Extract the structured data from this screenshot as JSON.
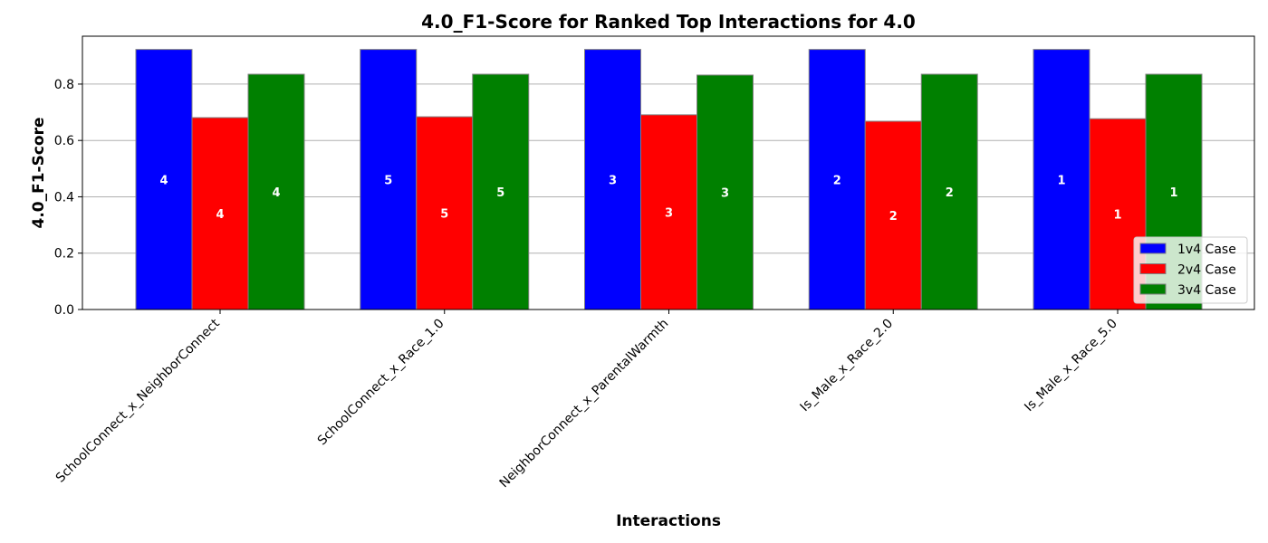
{
  "chart_data": {
    "type": "bar",
    "title": "4.0_F1-Score for Ranked Top Interactions for 4.0",
    "xlabel": "Interactions",
    "ylabel": "4.0_F1-Score",
    "ylim": [
      0,
      0.97
    ],
    "yticks": [
      0.0,
      0.2,
      0.4,
      0.6,
      0.8
    ],
    "ytick_labels": [
      "0.0",
      "0.2",
      "0.4",
      "0.6",
      "0.8"
    ],
    "grid": "y",
    "legend_position": "lower-right",
    "categories": [
      "SchoolConnect_x_NeighborConnect",
      "SchoolConnect_x_Race_1.0",
      "NeighborConnect_x_ParentalWarmth",
      "Is_Male_x_Race_2.0",
      "Is_Male_x_Race_5.0"
    ],
    "series": [
      {
        "name": "1v4 Case",
        "color": "#0000ff",
        "values": [
          0.923,
          0.923,
          0.923,
          0.923,
          0.923
        ],
        "labels": [
          "4",
          "5",
          "3",
          "2",
          "1"
        ]
      },
      {
        "name": "2v4 Case",
        "color": "#ff0000",
        "values": [
          0.681,
          0.684,
          0.691,
          0.668,
          0.677
        ],
        "labels": [
          "4",
          "5",
          "3",
          "2",
          "1"
        ]
      },
      {
        "name": "3v4 Case",
        "color": "#008000",
        "values": [
          0.835,
          0.835,
          0.832,
          0.835,
          0.835
        ],
        "labels": [
          "4",
          "5",
          "3",
          "2",
          "1"
        ]
      }
    ]
  }
}
